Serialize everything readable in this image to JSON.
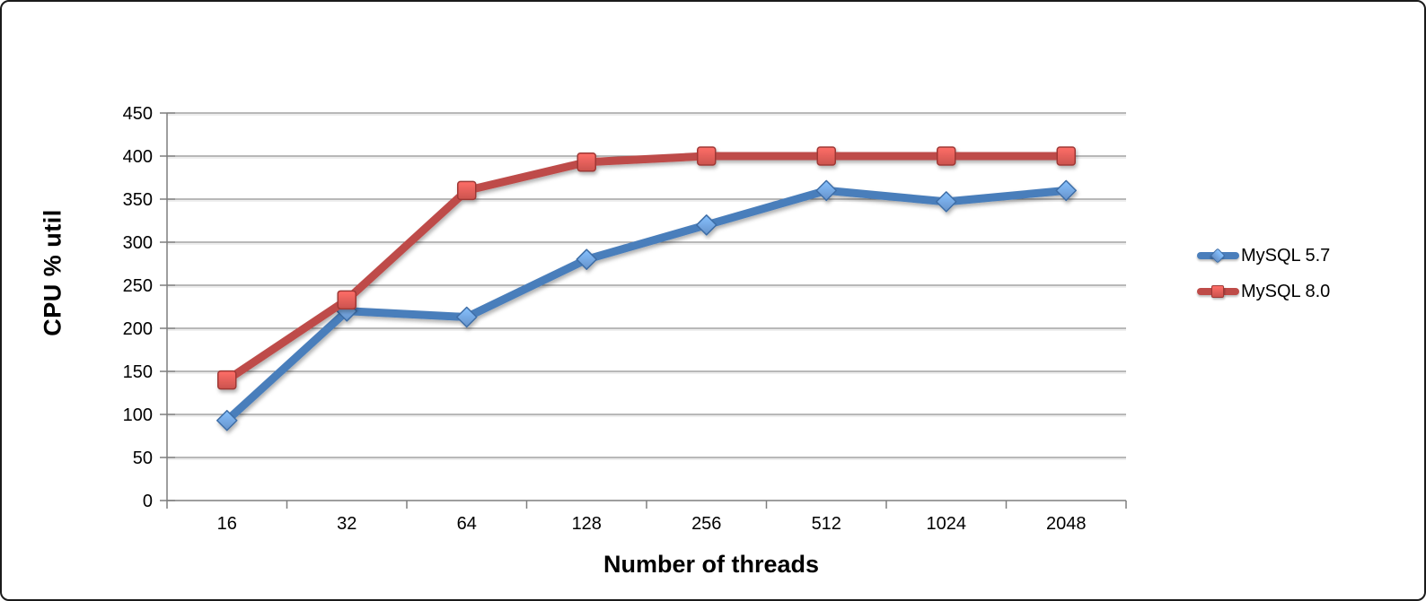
{
  "chart_data": {
    "type": "line",
    "title": "",
    "xlabel": "Number of threads",
    "ylabel": "CPU % util",
    "categories": [
      "16",
      "32",
      "64",
      "128",
      "256",
      "512",
      "1024",
      "2048"
    ],
    "series": [
      {
        "name": "MySQL 5.7",
        "marker": "diamond",
        "color": "#4a7ebb",
        "marker_fill": "#6f9fdc",
        "marker_stroke": "#3e6da6",
        "values": [
          93,
          220,
          213,
          280,
          320,
          360,
          347,
          360
        ]
      },
      {
        "name": "MySQL 8.0",
        "marker": "square",
        "color": "#be4b48",
        "marker_fill": "#dd5a55",
        "marker_stroke": "#9e3936",
        "values": [
          140,
          233,
          360,
          393,
          400,
          400,
          400,
          400
        ]
      }
    ],
    "ylim": [
      0,
      450
    ],
    "yticks": [
      0,
      50,
      100,
      150,
      200,
      250,
      300,
      350,
      400,
      450
    ],
    "grid": true,
    "legend_position": "right",
    "grid_color": "#8e8e8e",
    "grid_shadow_color": "#dcdcdc",
    "axis_color": "#7f7f7f",
    "tick_label_color": "#000000",
    "frame_border_color": "#1a1a1a",
    "background": "#ffffff"
  }
}
